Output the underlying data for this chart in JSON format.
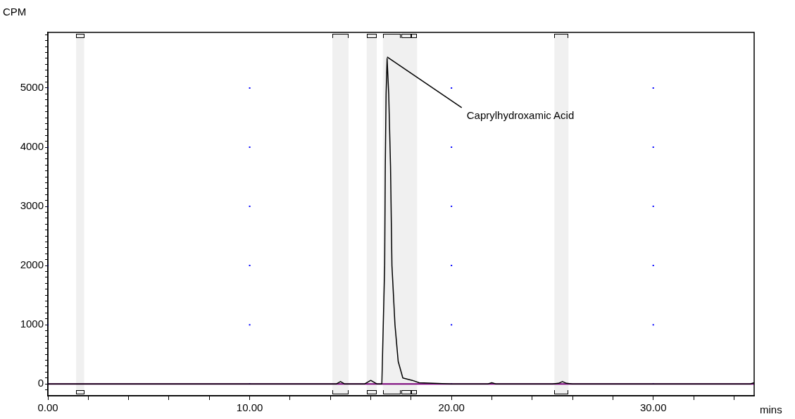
{
  "chart_data": {
    "type": "line",
    "xlabel": "mins",
    "ylabel": "CPM",
    "x": [
      0,
      2,
      4,
      6,
      8,
      10,
      12,
      14,
      14.3,
      14.5,
      14.7,
      15,
      15.7,
      16,
      16.3,
      16.55,
      16.69,
      16.72,
      16.76,
      16.81,
      16.89,
      16.98,
      17.05,
      17.2,
      17.36,
      17.59,
      18.06,
      18.4,
      20,
      21.8,
      22,
      22.2,
      25,
      25.3,
      25.5,
      25.7,
      26,
      30,
      34.8,
      35
    ],
    "series": [
      {
        "color": "#000000",
        "values": [
          0,
          0,
          0,
          0,
          0,
          0,
          0,
          0,
          0,
          40,
          0,
          0,
          0,
          60,
          0,
          0,
          2000,
          3670,
          4900,
          5500,
          4900,
          3670,
          2000,
          1000,
          380,
          100,
          60,
          20,
          0,
          0,
          20,
          0,
          0,
          10,
          40,
          10,
          0,
          0,
          0,
          20
        ]
      }
    ],
    "xlim": [
      0,
      35
    ],
    "ylim": [
      -200,
      5940
    ],
    "xticks": [
      {
        "value": 0,
        "label": "0.00"
      },
      {
        "value": 2,
        "label": null
      },
      {
        "value": 4,
        "label": null
      },
      {
        "value": 6,
        "label": null
      },
      {
        "value": 8,
        "label": null
      },
      {
        "value": 10,
        "label": "10.00"
      },
      {
        "value": 12,
        "label": null
      },
      {
        "value": 14,
        "label": null
      },
      {
        "value": 16,
        "label": null
      },
      {
        "value": 18,
        "label": null
      },
      {
        "value": 20,
        "label": "20.00"
      },
      {
        "value": 22,
        "label": null
      },
      {
        "value": 24,
        "label": null
      },
      {
        "value": 26,
        "label": null
      },
      {
        "value": 28,
        "label": null
      },
      {
        "value": 30,
        "label": "30.00"
      },
      {
        "value": 32,
        "label": null
      },
      {
        "value": 34,
        "label": null
      }
    ],
    "yticks": [
      {
        "value": -100,
        "label": null
      },
      0,
      {
        "value": 100,
        "label": null
      },
      {
        "value": 200,
        "label": null
      },
      {
        "value": 300,
        "label": null
      },
      {
        "value": 400,
        "label": null
      },
      {
        "value": 500,
        "label": null
      },
      {
        "value": 600,
        "label": null
      },
      {
        "value": 700,
        "label": null
      },
      {
        "value": 800,
        "label": null
      },
      {
        "value": 900,
        "label": null
      },
      1000,
      {
        "value": 1100,
        "label": null
      },
      {
        "value": 1200,
        "label": null
      },
      {
        "value": 1300,
        "label": null
      },
      {
        "value": 1400,
        "label": null
      },
      {
        "value": 1500,
        "label": null
      },
      {
        "value": 1600,
        "label": null
      },
      {
        "value": 1700,
        "label": null
      },
      {
        "value": 1800,
        "label": null
      },
      {
        "value": 1900,
        "label": null
      },
      2000,
      {
        "value": 2100,
        "label": null
      },
      {
        "value": 2200,
        "label": null
      },
      {
        "value": 2300,
        "label": null
      },
      {
        "value": 2400,
        "label": null
      },
      {
        "value": 2500,
        "label": null
      },
      {
        "value": 2600,
        "label": null
      },
      {
        "value": 2700,
        "label": null
      },
      {
        "value": 2800,
        "label": null
      },
      {
        "value": 2900,
        "label": null
      },
      3000,
      {
        "value": 3100,
        "label": null
      },
      {
        "value": 3200,
        "label": null
      },
      {
        "value": 3300,
        "label": null
      },
      {
        "value": 3400,
        "label": null
      },
      {
        "value": 3500,
        "label": null
      },
      {
        "value": 3600,
        "label": null
      },
      {
        "value": 3700,
        "label": null
      },
      {
        "value": 3800,
        "label": null
      },
      {
        "value": 3900,
        "label": null
      },
      4000,
      {
        "value": 4100,
        "label": null
      },
      {
        "value": 4200,
        "label": null
      },
      {
        "value": 4300,
        "label": null
      },
      {
        "value": 4400,
        "label": null
      },
      {
        "value": 4500,
        "label": null
      },
      {
        "value": 4600,
        "label": null
      },
      {
        "value": 4700,
        "label": null
      },
      {
        "value": 4800,
        "label": null
      },
      {
        "value": 4900,
        "label": null
      },
      5000,
      {
        "value": 5100,
        "label": null
      },
      {
        "value": 5200,
        "label": null
      },
      {
        "value": 5300,
        "label": null
      },
      {
        "value": 5400,
        "label": null
      },
      {
        "value": 5500,
        "label": null
      },
      {
        "value": 5600,
        "label": null
      },
      {
        "value": 5700,
        "label": null
      },
      {
        "value": 5800,
        "label": null
      },
      {
        "value": 5900,
        "label": null
      }
    ],
    "grid": true,
    "marker": "none",
    "line_style": "solid",
    "ref_lines": [
      {
        "axis": "y",
        "value": 0,
        "color": "#800080"
      }
    ],
    "bands": [
      {
        "axis": "x",
        "from": 1.4,
        "to": 1.8,
        "color": "#000000"
      },
      {
        "axis": "x",
        "from": 14.1,
        "to": 14.9,
        "color": "#000000"
      },
      {
        "axis": "x",
        "from": 15.8,
        "to": 16.3,
        "color": "#000000"
      },
      {
        "axis": "x",
        "from": 16.6,
        "to": 17.5,
        "color": "#000000"
      },
      {
        "axis": "x",
        "from": 17.5,
        "to": 18.0,
        "color": "#000000"
      },
      {
        "axis": "x",
        "from": 18.0,
        "to": 18.3,
        "color": "#000000"
      },
      {
        "axis": "x",
        "from": 25.1,
        "to": 25.8,
        "color": "#000000"
      }
    ],
    "annotations": [
      {
        "text": "Caprylhydroxamic Acid",
        "x": 16.81,
        "y": 5500
      }
    ]
  }
}
